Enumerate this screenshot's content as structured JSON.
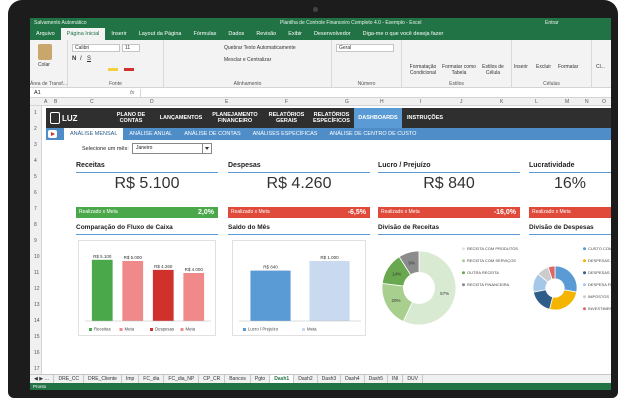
{
  "window": {
    "title": "Planilha de Controle Financeiro Completo 4.0 - Exemplo - Excel",
    "autosave": "Salvamento Automático",
    "sign_in": "Entrar"
  },
  "menu": [
    "Arquivo",
    "Página Inicial",
    "Inserir",
    "Layout da Página",
    "Fórmulas",
    "Dados",
    "Revisão",
    "Exibir",
    "Desenvolvedor",
    "Diga-me o que você deseja fazer"
  ],
  "ribbon": {
    "paste": "Colar",
    "clipboard": "Área de Transf...",
    "font_name": "Calibri",
    "font_size": "11",
    "font_group": "Fonte",
    "wrap_text": "Quebrar Texto Automaticamente",
    "merge": "Mesclar e Centralizar",
    "alignment": "Alinhamento",
    "number_format": "Geral",
    "number_group": "Número",
    "cond_format": "Formatação Condicional",
    "format_table": "Formatar como Tabela",
    "cell_styles": "Estilos de Célula",
    "styles_group": "Estilos",
    "insert": "Inserir",
    "delete": "Excluir",
    "format": "Formatar",
    "cells_group": "Células",
    "clear": "Cl..."
  },
  "formula_bar": {
    "cell_ref": "A1",
    "fx": "fx"
  },
  "columns": [
    "A",
    "B",
    "C",
    "D",
    "E",
    "F",
    "G",
    "H",
    "I",
    "J",
    "K",
    "L",
    "M",
    "N",
    "O"
  ],
  "rows": [
    "1",
    "2",
    "3",
    "4",
    "5",
    "6",
    "7",
    "8",
    "9",
    "10",
    "11",
    "12",
    "13",
    "14",
    "15",
    "16",
    "17"
  ],
  "dashboard": {
    "logo": "LUZ",
    "nav": [
      "PLANO DE CONTAS",
      "LANÇAMENTOS",
      "PLANEJAMENTO FINANCEIRO",
      "RELATÓRIOS GERAIS",
      "RELATÓRIOS ESPECÍFICOS",
      "DASHBOARDS",
      "INSTRUÇÕES"
    ],
    "subnav": [
      "ANÁLISE MENSAL",
      "ANÁLISE ANUAL",
      "ANÁLISE DE CONTAS",
      "ANÁLISES ESPECÍFICAS",
      "ANÁLISE DE CENTRO DE CUSTO"
    ],
    "month_label": "Selecione um mês:",
    "month_value": "Janeiro",
    "kpis": [
      {
        "title": "Receitas",
        "value": "R$ 5.100",
        "bar_label": "Realizado x Meta",
        "pct": "2,0%",
        "color": "#4aa84a"
      },
      {
        "title": "Despesas",
        "value": "R$ 4.260",
        "bar_label": "Realizado x Meta",
        "pct": "-6,5%",
        "color": "#e04a3a"
      },
      {
        "title": "Lucro / Prejuízo",
        "value": "R$ 840",
        "bar_label": "Realizado x Meta",
        "pct": "-16,0%",
        "color": "#e04a3a"
      },
      {
        "title": "Lucratividade",
        "value": "16%",
        "bar_label": "Realizado x Meta",
        "pct": "",
        "color": "#e04a3a"
      }
    ],
    "chart_titles": [
      "Comparação do Fluxo de Caixa",
      "Saldo do Mês",
      "Divisão de Receitas",
      "Divisão de Despesas"
    ]
  },
  "chart_data": [
    {
      "type": "bar",
      "title": "Comparação do Fluxo de Caixa",
      "categories": [
        "Receitas",
        "Meta",
        "Despesas",
        "Meta"
      ],
      "values": [
        5100,
        5000,
        4260,
        4000
      ],
      "data_labels": [
        "R$ 5.100",
        "R$ 5.000",
        "R$ 4.260",
        "R$ 4.000"
      ],
      "colors": [
        "#4aa84a",
        "#f08a8a",
        "#d0312d",
        "#f08a8a"
      ],
      "ylim": [
        0,
        5500
      ]
    },
    {
      "type": "bar",
      "title": "Saldo do Mês",
      "categories": [
        "Lucro / Prejuízo",
        "Meta"
      ],
      "values": [
        840,
        1000
      ],
      "data_labels": [
        "R$ 840",
        "R$ 1.000"
      ],
      "colors": [
        "#5b9bd5",
        "#c9daf0"
      ],
      "ylim": [
        0,
        1100
      ]
    },
    {
      "type": "pie",
      "title": "Divisão de Receitas",
      "labels": [
        "RECEITA COM PRODUTOS",
        "RECEITA COM SERVIÇOS",
        "OUTRA RECEITA",
        "RECEITA FINANCEIRA"
      ],
      "values": [
        57,
        20,
        14,
        9
      ],
      "data_labels": [
        "57%",
        "20%",
        "14%",
        "9%"
      ],
      "colors": [
        "#d9ead3",
        "#a8cf8e",
        "#6aa84f",
        "#8c8c8c"
      ],
      "legend": "right"
    },
    {
      "type": "pie",
      "title": "Divisão de Despesas",
      "labels": [
        "CUSTO COM...",
        "DESPESAS...",
        "DESPESAS...",
        "DESPESA FI...",
        "IMPOSTOS",
        "INVESTIMEN..."
      ],
      "values": [
        28,
        26,
        18,
        14,
        9,
        5
      ],
      "colors": [
        "#5b9bd5",
        "#f4b400",
        "#2f5d8a",
        "#a5c8e8",
        "#cccccc",
        "#e06666"
      ],
      "legend": "right"
    }
  ],
  "sheet_tabs": [
    "DRE_CC",
    "DRE_Cliente",
    "Imp",
    "FC_dia",
    "FC_dia_NP",
    "CP_CR",
    "Bancos",
    "Pgto",
    "Dash1",
    "Dash2",
    "Dash3",
    "Dash4",
    "Dash5",
    "INI",
    "DUV"
  ],
  "active_tab": "Dash1",
  "status": "Pronto"
}
